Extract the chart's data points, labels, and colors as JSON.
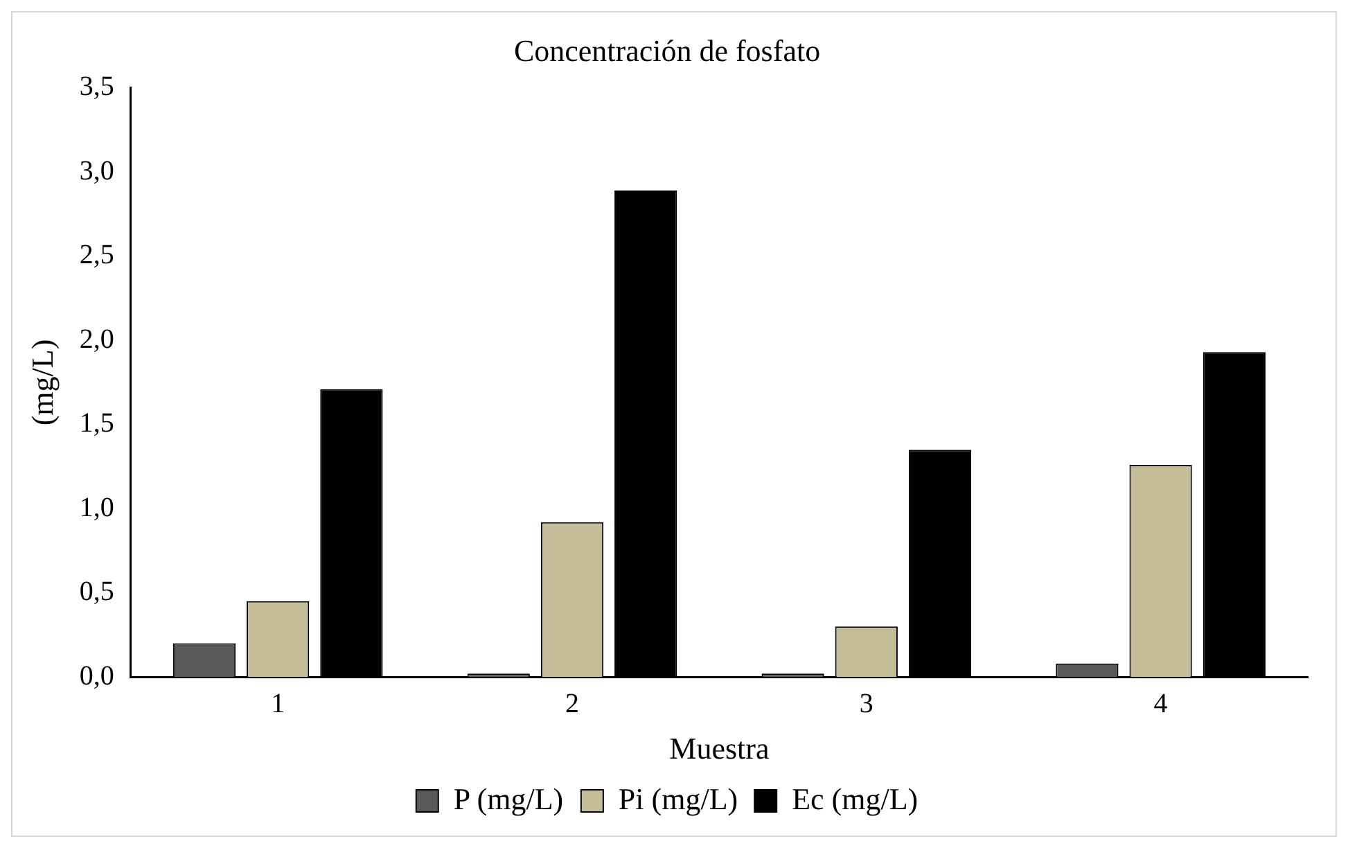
{
  "chart_data": {
    "type": "bar",
    "title": "Concentración de fosfato",
    "xlabel": "Muestra",
    "ylabel": "(mg/L)",
    "categories": [
      "1",
      "2",
      "3",
      "4"
    ],
    "series": [
      {
        "name": "P (mg/L)",
        "color": "#595959",
        "values": [
          0.2,
          0.02,
          0.02,
          0.08
        ]
      },
      {
        "name": "Pi (mg/L)",
        "color": "#c4bd97",
        "values": [
          0.45,
          0.92,
          0.3,
          1.26
        ]
      },
      {
        "name": "Ec (mg/L)",
        "color": "#000000",
        "values": [
          1.71,
          2.89,
          1.35,
          1.93
        ]
      }
    ],
    "ylim": [
      0,
      3.5
    ],
    "yticks": [
      {
        "value": 0,
        "label": "0,0"
      },
      {
        "value": 0.5,
        "label": "0,5"
      },
      {
        "value": 1,
        "label": "1,0"
      },
      {
        "value": 1.5,
        "label": "1,5"
      },
      {
        "value": 2,
        "label": "2,0"
      },
      {
        "value": 2.5,
        "label": "2,5"
      },
      {
        "value": 3,
        "label": "3,0"
      },
      {
        "value": 3.5,
        "label": "3,5"
      }
    ],
    "grid": false,
    "legend": "bottom"
  }
}
